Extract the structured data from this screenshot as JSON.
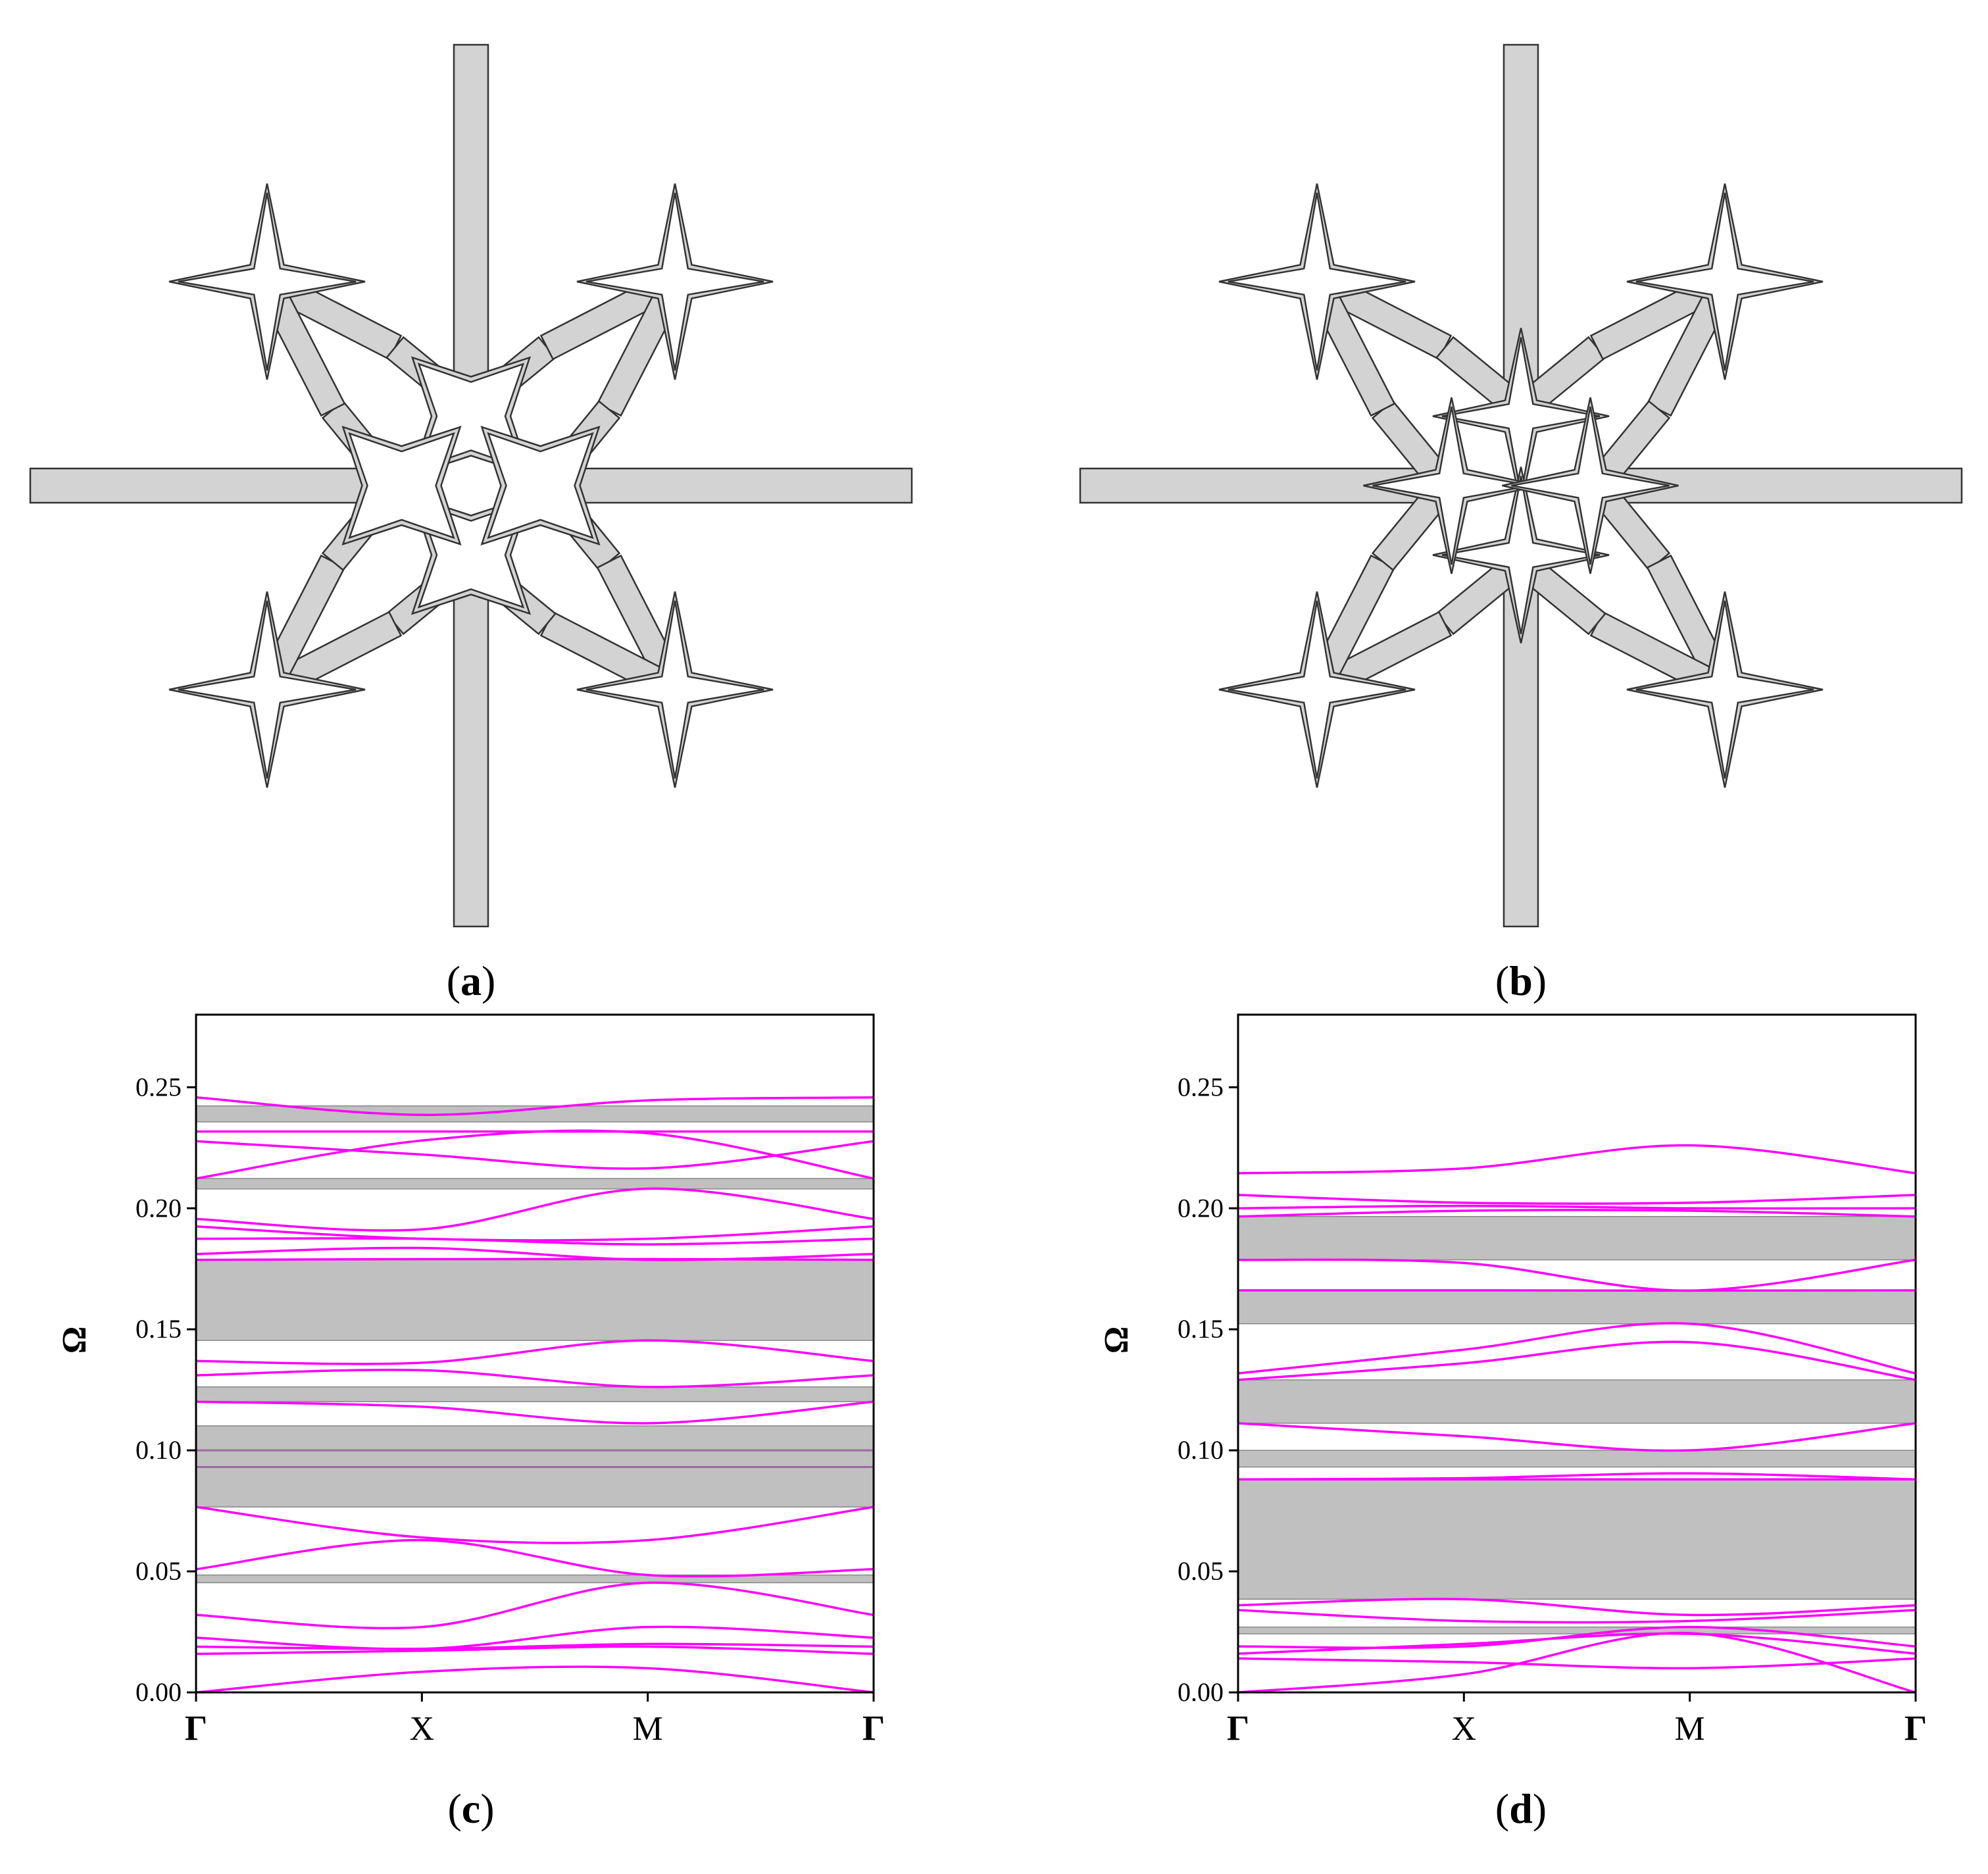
{
  "colors": {
    "band": "#ff00ff",
    "gap": "#c0c0c0",
    "material": "#d3d3d3",
    "outline": "#333333"
  },
  "panels": {
    "a": {
      "label_letter": "a",
      "label_open": "(",
      "label_close": ")"
    },
    "b": {
      "label_letter": "b",
      "label_open": "(",
      "label_close": ")"
    },
    "c": {
      "label_letter": "c",
      "label_open": "(",
      "label_close": ")"
    },
    "d": {
      "label_letter": "d",
      "label_open": "(",
      "label_close": ")"
    }
  },
  "chart_data": [
    {
      "panel": "c",
      "type": "line",
      "ylabel": "Ω",
      "ylim": [
        0,
        0.28
      ],
      "yticks": [
        "0.00",
        "0.05",
        "0.10",
        "0.15",
        "0.20",
        "0.25"
      ],
      "categories": [
        "Γ",
        "X",
        "M",
        "Γ"
      ],
      "grid": false,
      "gaps": [
        [
          0.2357,
          0.2423
        ],
        [
          0.208,
          0.2123
        ],
        [
          0.1454,
          0.1787
        ],
        [
          0.1201,
          0.1262
        ],
        [
          0.0766,
          0.1101
        ],
        [
          0.0453,
          0.0485
        ]
      ],
      "inner_lines": [
        0.1,
        0.0931
      ],
      "series": [
        {
          "values": [
            0.2458,
            0.2386,
            0.2446,
            0.2458
          ]
        },
        {
          "values": [
            0.2317,
            0.2317,
            0.2317,
            0.2317
          ]
        },
        {
          "values": [
            0.2277,
            0.2222,
            0.2165,
            0.2277
          ]
        },
        {
          "values": [
            0.2123,
            0.228,
            0.231,
            0.2123
          ]
        },
        {
          "values": [
            0.1956,
            0.1913,
            0.2081,
            0.1956
          ]
        },
        {
          "values": [
            0.1925,
            0.1874,
            0.1874,
            0.1925
          ]
        },
        {
          "values": [
            0.1874,
            0.1874,
            0.1851,
            0.1874
          ]
        },
        {
          "values": [
            0.1811,
            0.1836,
            0.1787,
            0.1811
          ]
        },
        {
          "values": [
            0.1787,
            0.179,
            0.179,
            0.1787
          ]
        },
        {
          "values": [
            0.1369,
            0.1362,
            0.1454,
            0.1369
          ]
        },
        {
          "values": [
            0.131,
            0.1331,
            0.1262,
            0.131
          ]
        },
        {
          "values": [
            0.1201,
            0.118,
            0.1112,
            0.1201
          ]
        },
        {
          "values": [
            0.0766,
            0.064,
            0.0629,
            0.0766
          ]
        },
        {
          "values": [
            0.0509,
            0.0629,
            0.0485,
            0.0509
          ]
        },
        {
          "values": [
            0.032,
            0.027,
            0.0453,
            0.032
          ]
        },
        {
          "values": [
            0.0226,
            0.018,
            0.027,
            0.0226
          ]
        },
        {
          "values": [
            0.0189,
            0.018,
            0.02,
            0.0189
          ]
        },
        {
          "values": [
            0.0159,
            0.0172,
            0.0189,
            0.0159
          ]
        },
        {
          "values": [
            0.0,
            0.0085,
            0.01,
            0.0
          ]
        }
      ]
    },
    {
      "panel": "d",
      "type": "line",
      "ylabel": "Ω",
      "ylim": [
        0,
        0.28
      ],
      "yticks": [
        "0.00",
        "0.05",
        "0.10",
        "0.15",
        "0.20",
        "0.25"
      ],
      "categories": [
        "Γ",
        "X",
        "M",
        "Γ"
      ],
      "grid": false,
      "gaps": [
        [
          0.1787,
          0.1966
        ],
        [
          0.1523,
          0.166
        ],
        [
          0.1112,
          0.1291
        ],
        [
          0.0931,
          0.1
        ],
        [
          0.0385,
          0.088
        ],
        [
          0.0242,
          0.027
        ]
      ],
      "inner_lines": [],
      "series": [
        {
          "values": [
            0.2145,
            0.2165,
            0.226,
            0.2145
          ]
        },
        {
          "values": [
            0.2055,
            0.2023,
            0.2023,
            0.2055
          ]
        },
        {
          "values": [
            0.2,
            0.201,
            0.2,
            0.2
          ]
        },
        {
          "values": [
            0.1966,
            0.199,
            0.199,
            0.1966
          ]
        },
        {
          "values": [
            0.1787,
            0.1774,
            0.166,
            0.1787
          ]
        },
        {
          "values": [
            0.1661,
            0.1661,
            0.166,
            0.1661
          ]
        },
        {
          "values": [
            0.1318,
            0.1416,
            0.1523,
            0.1318
          ]
        },
        {
          "values": [
            0.1291,
            0.136,
            0.1447,
            0.1291
          ]
        },
        {
          "values": [
            0.1112,
            0.1058,
            0.1,
            0.1112
          ]
        },
        {
          "values": [
            0.088,
            0.088,
            0.088,
            0.088
          ]
        },
        {
          "values": [
            0.088,
            0.0885,
            0.0905,
            0.088
          ]
        },
        {
          "values": [
            0.036,
            0.0385,
            0.032,
            0.036
          ]
        },
        {
          "values": [
            0.034,
            0.0295,
            0.0295,
            0.034
          ]
        },
        {
          "values": [
            0.019,
            0.019,
            0.027,
            0.019
          ]
        },
        {
          "values": [
            0.016,
            0.02,
            0.0242,
            0.016
          ]
        },
        {
          "values": [
            0.014,
            0.0125,
            0.01,
            0.014
          ]
        },
        {
          "values": [
            0.0,
            0.0075,
            0.0245,
            0.0
          ]
        }
      ]
    }
  ]
}
